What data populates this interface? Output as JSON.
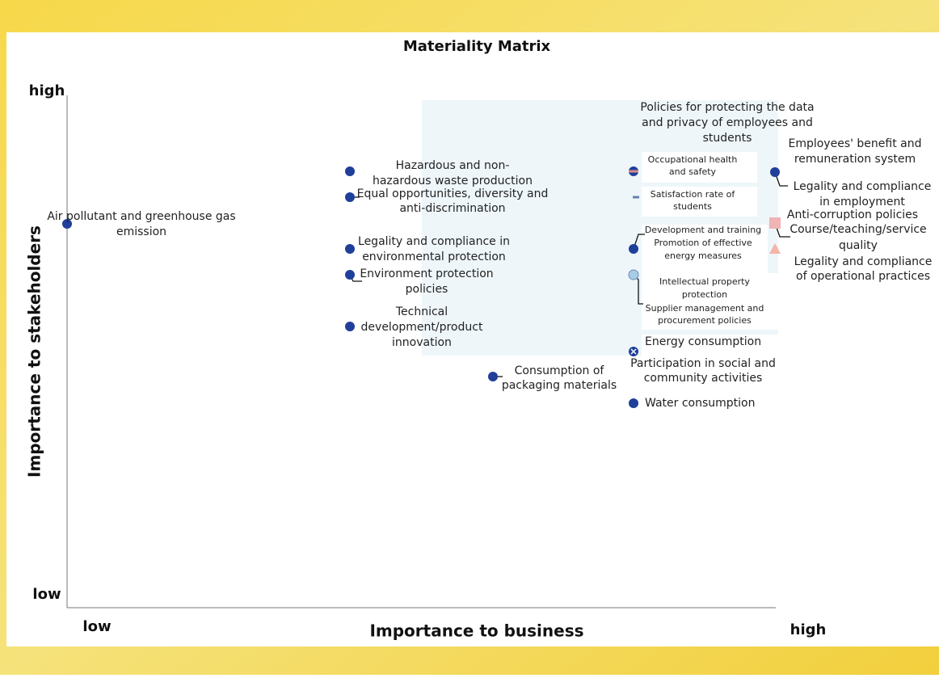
{
  "title": "Materiality Matrix",
  "y_axis": {
    "title": "Importance to stakeholders",
    "high": "high",
    "low": "low"
  },
  "x_axis": {
    "title": "Importance to business",
    "low": "low",
    "high": "high"
  },
  "items": [
    {
      "label": [
        "Air pollutant and greenhouse gas",
        "emission"
      ]
    },
    {
      "label": [
        "Hazardous and non-",
        "hazardous waste production"
      ]
    },
    {
      "label": [
        "Equal opportunities, diversity and",
        "anti-discrimination"
      ]
    },
    {
      "label": [
        "Legality and compliance in",
        "environmental protection"
      ]
    },
    {
      "label": [
        "Environment protection",
        "policies"
      ]
    },
    {
      "label": [
        "Technical",
        "development/product",
        "innovation"
      ]
    },
    {
      "label": [
        "Consumption of",
        "packaging materials"
      ]
    },
    {
      "label": [
        "Policies for protecting the data",
        "and privacy of employees and",
        "students"
      ]
    },
    {
      "label": [
        "Occupational health",
        "and safety"
      ]
    },
    {
      "label": [
        "Satisfaction rate of",
        "students"
      ]
    },
    {
      "label": [
        "Development and training",
        "Promotion of effective",
        "energy measures"
      ]
    },
    {
      "label": [
        "Intellectual property",
        "protection",
        "Supplier management and",
        "procurement policies"
      ]
    },
    {
      "label": [
        "Energy consumption"
      ]
    },
    {
      "label": [
        "Participation in social and",
        "community activities"
      ]
    },
    {
      "label": [
        "Water consumption"
      ]
    },
    {
      "label": [
        "Employees' benefit and",
        "remuneration system"
      ]
    },
    {
      "label": [
        "Legality and compliance",
        "in employment"
      ]
    },
    {
      "label": [
        "Anti-corruption policies"
      ]
    },
    {
      "label": [
        "Course/teaching/service",
        "quality"
      ]
    },
    {
      "label": [
        "Legality and compliance",
        "of operational practices"
      ]
    }
  ]
}
